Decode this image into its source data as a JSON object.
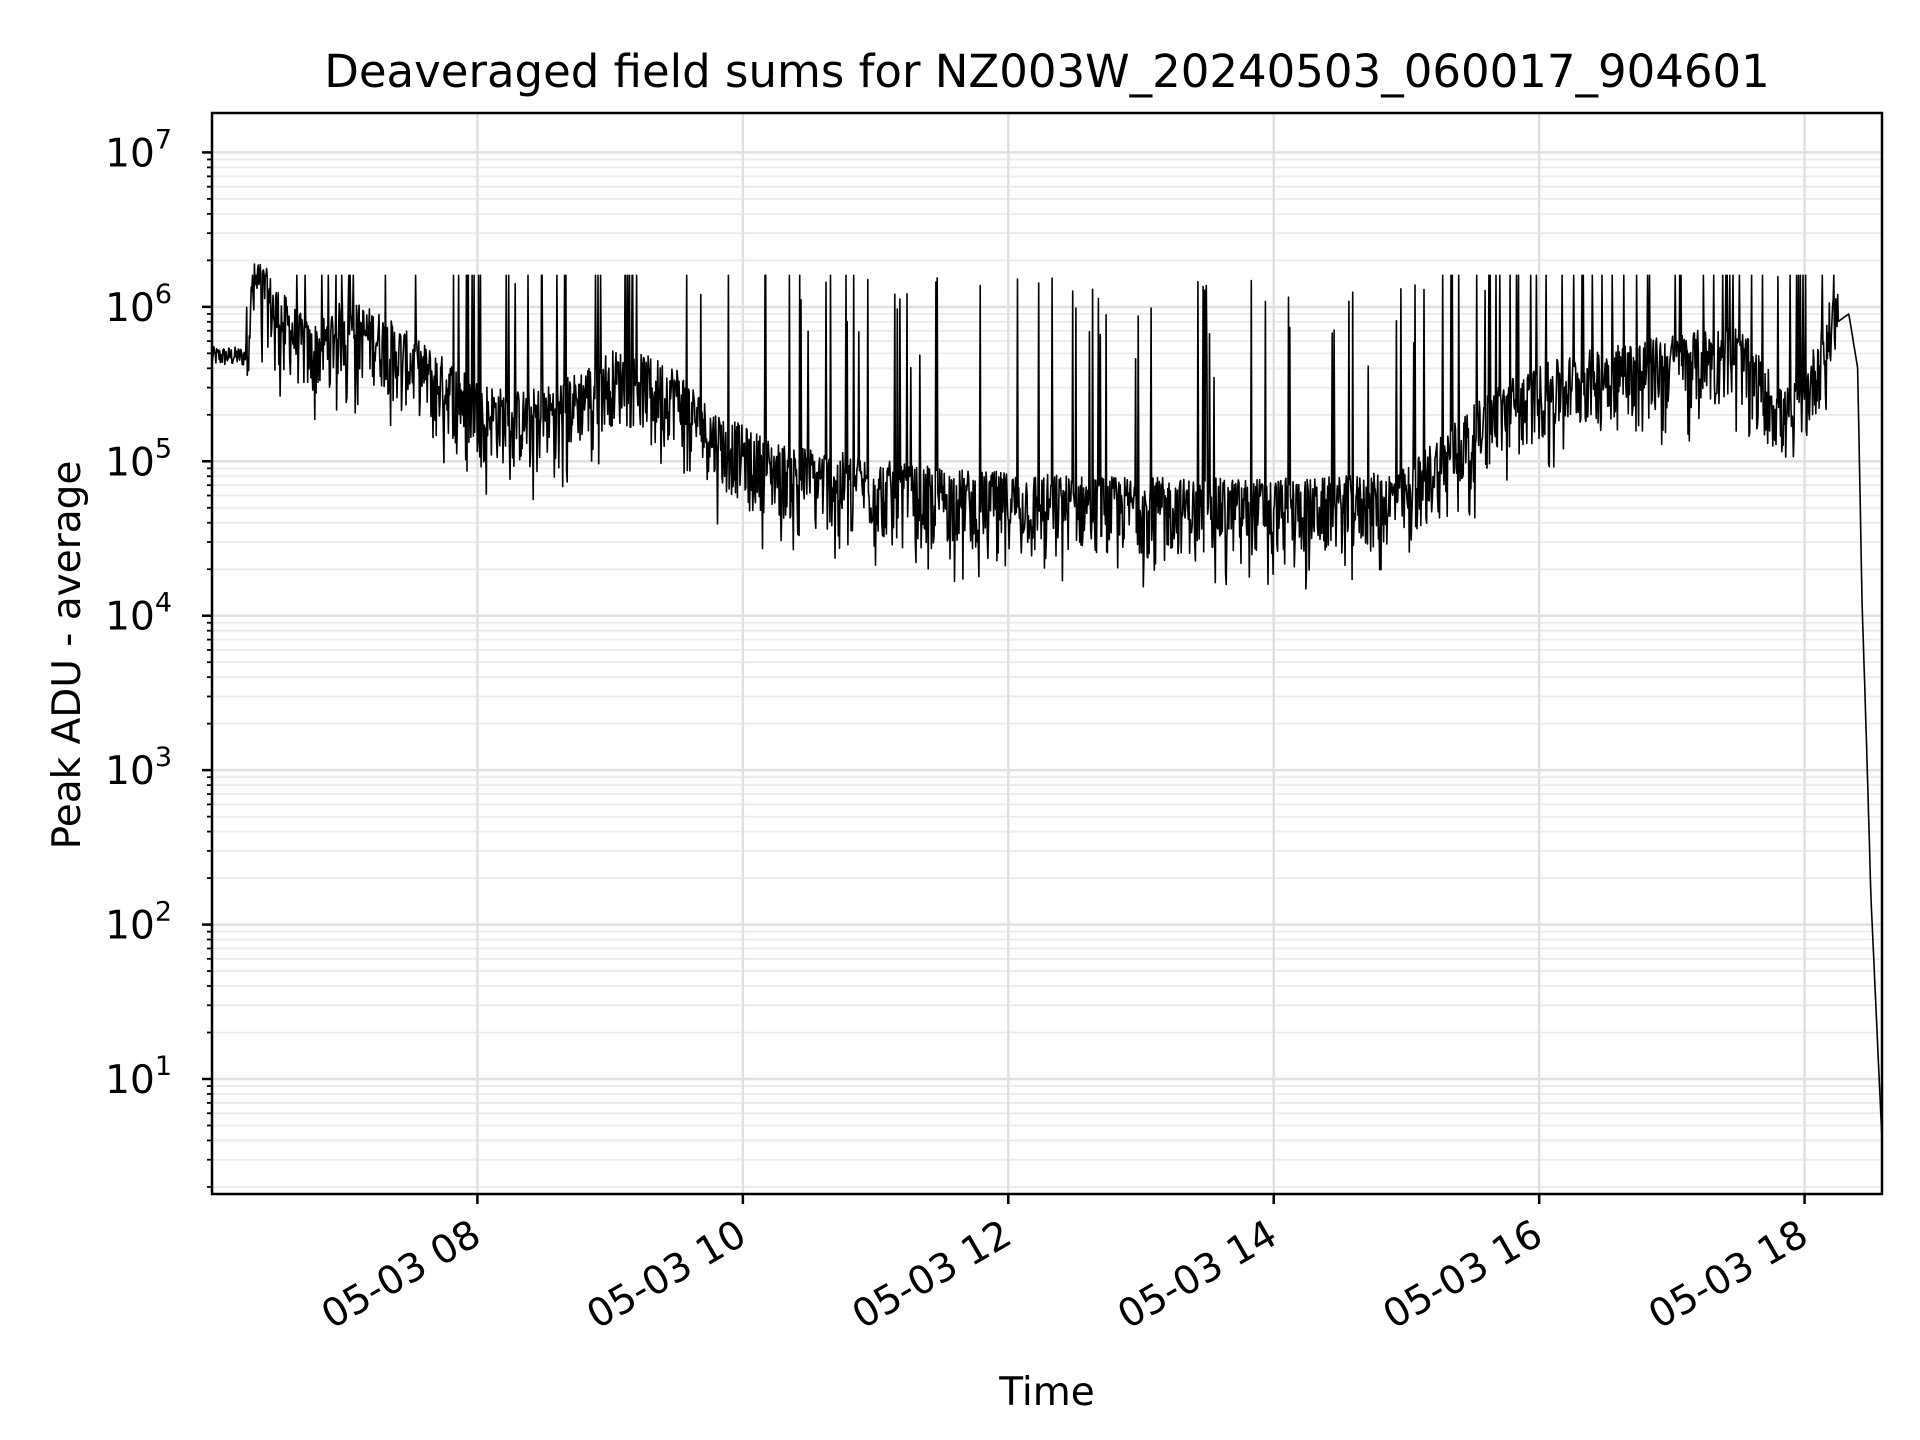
{
  "chart_data": {
    "type": "line",
    "title": "Deaveraged field sums for NZ003W_20240503_060017_904601",
    "xlabel": "Time",
    "ylabel": "Peak ADU - average",
    "yscale": "log",
    "ylim": [
      1.8,
      18000000
    ],
    "xlim": [
      "2024-05-03 06:00",
      "2024-05-03 18:35"
    ],
    "x_ticks": [
      {
        "value": "2024-05-03 08:00",
        "label": "05-03 08"
      },
      {
        "value": "2024-05-03 10:00",
        "label": "05-03 10"
      },
      {
        "value": "2024-05-03 12:00",
        "label": "05-03 12"
      },
      {
        "value": "2024-05-03 14:00",
        "label": "05-03 14"
      },
      {
        "value": "2024-05-03 16:00",
        "label": "05-03 16"
      },
      {
        "value": "2024-05-03 18:00",
        "label": "05-03 18"
      }
    ],
    "y_ticks": [
      {
        "value": 10,
        "base": "10",
        "exp": "1"
      },
      {
        "value": 100,
        "base": "10",
        "exp": "2"
      },
      {
        "value": 1000,
        "base": "10",
        "exp": "3"
      },
      {
        "value": 10000,
        "base": "10",
        "exp": "4"
      },
      {
        "value": 100000,
        "base": "10",
        "exp": "5"
      },
      {
        "value": 1000000,
        "base": "10",
        "exp": "6"
      },
      {
        "value": 10000000,
        "base": "10",
        "exp": "7"
      }
    ],
    "grid": "major and minor",
    "series": [
      {
        "color": "#000000",
        "x": [
          "2024-05-03 06:00",
          "2024-05-03 06:15",
          "2024-05-03 06:20",
          "2024-05-03 06:30",
          "2024-05-03 06:45",
          "2024-05-03 07:00",
          "2024-05-03 07:15",
          "2024-05-03 07:30",
          "2024-05-03 07:45",
          "2024-05-03 08:00",
          "2024-05-03 08:15",
          "2024-05-03 08:30",
          "2024-05-03 08:45",
          "2024-05-03 09:00",
          "2024-05-03 09:15",
          "2024-05-03 09:30",
          "2024-05-03 09:45",
          "2024-05-03 10:00",
          "2024-05-03 10:15",
          "2024-05-03 10:30",
          "2024-05-03 10:45",
          "2024-05-03 11:00",
          "2024-05-03 11:15",
          "2024-05-03 11:30",
          "2024-05-03 11:45",
          "2024-05-03 12:00",
          "2024-05-03 12:15",
          "2024-05-03 12:30",
          "2024-05-03 12:45",
          "2024-05-03 13:00",
          "2024-05-03 13:15",
          "2024-05-03 13:30",
          "2024-05-03 13:45",
          "2024-05-03 14:00",
          "2024-05-03 14:15",
          "2024-05-03 14:30",
          "2024-05-03 14:45",
          "2024-05-03 15:00",
          "2024-05-03 15:15",
          "2024-05-03 15:30",
          "2024-05-03 15:45",
          "2024-05-03 16:00",
          "2024-05-03 16:15",
          "2024-05-03 16:30",
          "2024-05-03 16:45",
          "2024-05-03 17:00",
          "2024-05-03 17:15",
          "2024-05-03 17:30",
          "2024-05-03 17:45",
          "2024-05-03 17:50",
          "2024-05-03 18:00",
          "2024-05-03 18:10",
          "2024-05-03 18:15",
          "2024-05-03 18:20",
          "2024-05-03 18:24",
          "2024-05-03 18:26",
          "2024-05-03 18:28",
          "2024-05-03 18:30",
          "2024-05-03 18:35"
        ],
        "values": [
          480000,
          480000,
          1200000,
          700000,
          400000,
          600000,
          500000,
          350000,
          250000,
          180000,
          150000,
          160000,
          200000,
          280000,
          260000,
          220000,
          120000,
          90000,
          70000,
          65000,
          60000,
          55000,
          50000,
          48000,
          46000,
          45000,
          44000,
          43000,
          42000,
          42000,
          41000,
          41000,
          41000,
          41000,
          41000,
          42000,
          44000,
          48000,
          80000,
          120000,
          180000,
          220000,
          260000,
          300000,
          320000,
          350000,
          380000,
          400000,
          200000,
          150000,
          200000,
          500000,
          800000,
          900000,
          400000,
          12000,
          1500,
          150,
          4
        ]
      }
    ]
  }
}
